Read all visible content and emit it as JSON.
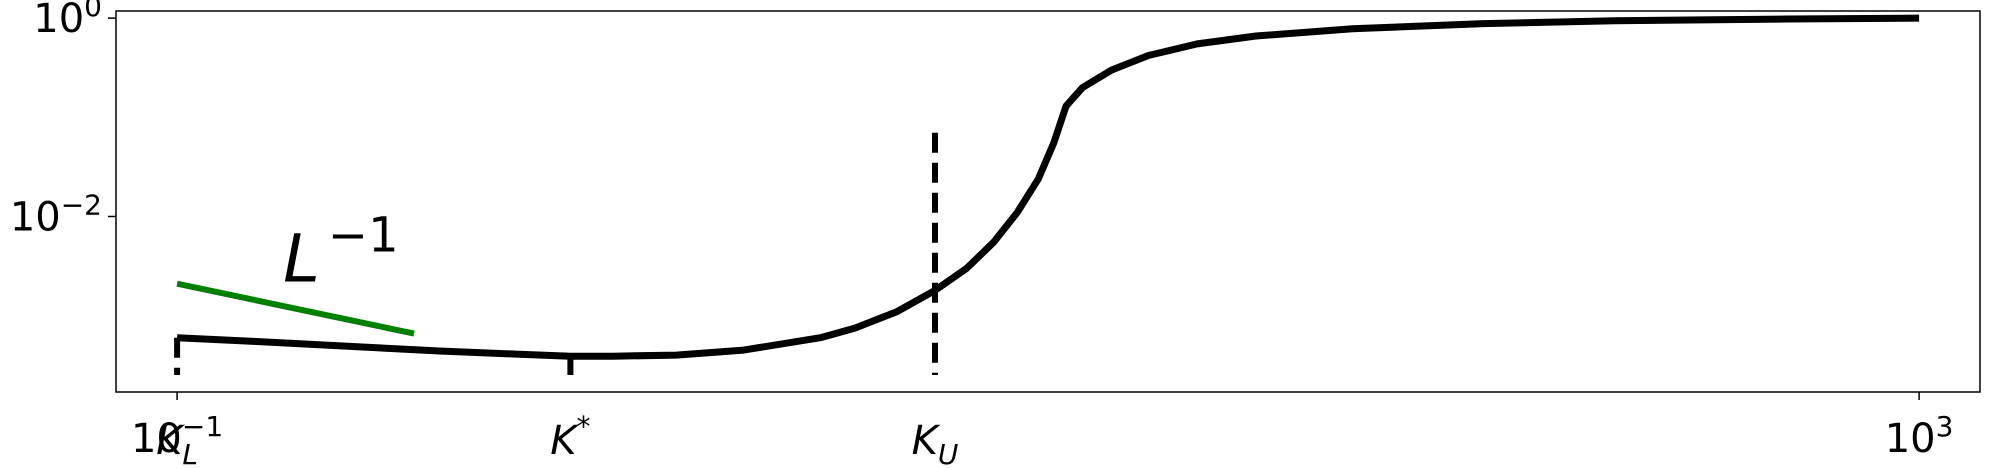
{
  "chart_data": {
    "type": "line",
    "title": "",
    "xlabel": "",
    "ylabel": "",
    "x_scale": "log",
    "y_scale": "log",
    "xlim": [
      0.0724,
      1380
    ],
    "ylim": [
      0.00017,
      1.18
    ],
    "grid": false,
    "x_ticks": [
      {
        "value": 0.1,
        "base": "10",
        "exp": "−1"
      },
      {
        "value": 1000,
        "base": "10",
        "exp": "3"
      }
    ],
    "y_ticks": [
      {
        "value": 1,
        "base": "10",
        "exp": "0"
      },
      {
        "value": 0.01,
        "base": "10",
        "exp": "−2"
      }
    ],
    "series": [
      {
        "color": "#000000",
        "x": [
          0.1,
          0.15,
          0.25,
          0.4,
          0.6,
          0.8,
          1.0,
          1.4,
          2.0,
          3.0,
          3.6,
          4.5,
          5.5,
          6.5,
          7.5,
          8.5,
          9.5,
          10.3,
          11,
          12,
          14,
          17,
          22,
          30,
          50,
          100,
          200,
          500,
          1000
        ],
        "y": [
          0.0006,
          0.00055,
          0.00049,
          0.00044,
          0.00041,
          0.00039,
          0.00039,
          0.0004,
          0.00045,
          0.0006,
          0.00075,
          0.0011,
          0.0018,
          0.003,
          0.0055,
          0.011,
          0.024,
          0.055,
          0.13,
          0.2,
          0.3,
          0.42,
          0.55,
          0.66,
          0.78,
          0.88,
          0.94,
          0.98,
          1.0
        ]
      }
    ],
    "reference_line": {
      "label_base": "L",
      "label_exp": "−1",
      "color": "#008000",
      "x": [
        0.1,
        0.35
      ],
      "y": [
        0.0021,
        0.00066
      ]
    },
    "markers": [
      {
        "label": "K",
        "sub": "L",
        "sup": "",
        "x": 0.1,
        "y": 0.0006
      },
      {
        "label": "K",
        "sub": "",
        "sup": "*",
        "x": 0.8,
        "y": 0.00039
      },
      {
        "label": "K",
        "sub": "U",
        "sup": "",
        "x": 5.5,
        "y": 0.07
      }
    ]
  }
}
